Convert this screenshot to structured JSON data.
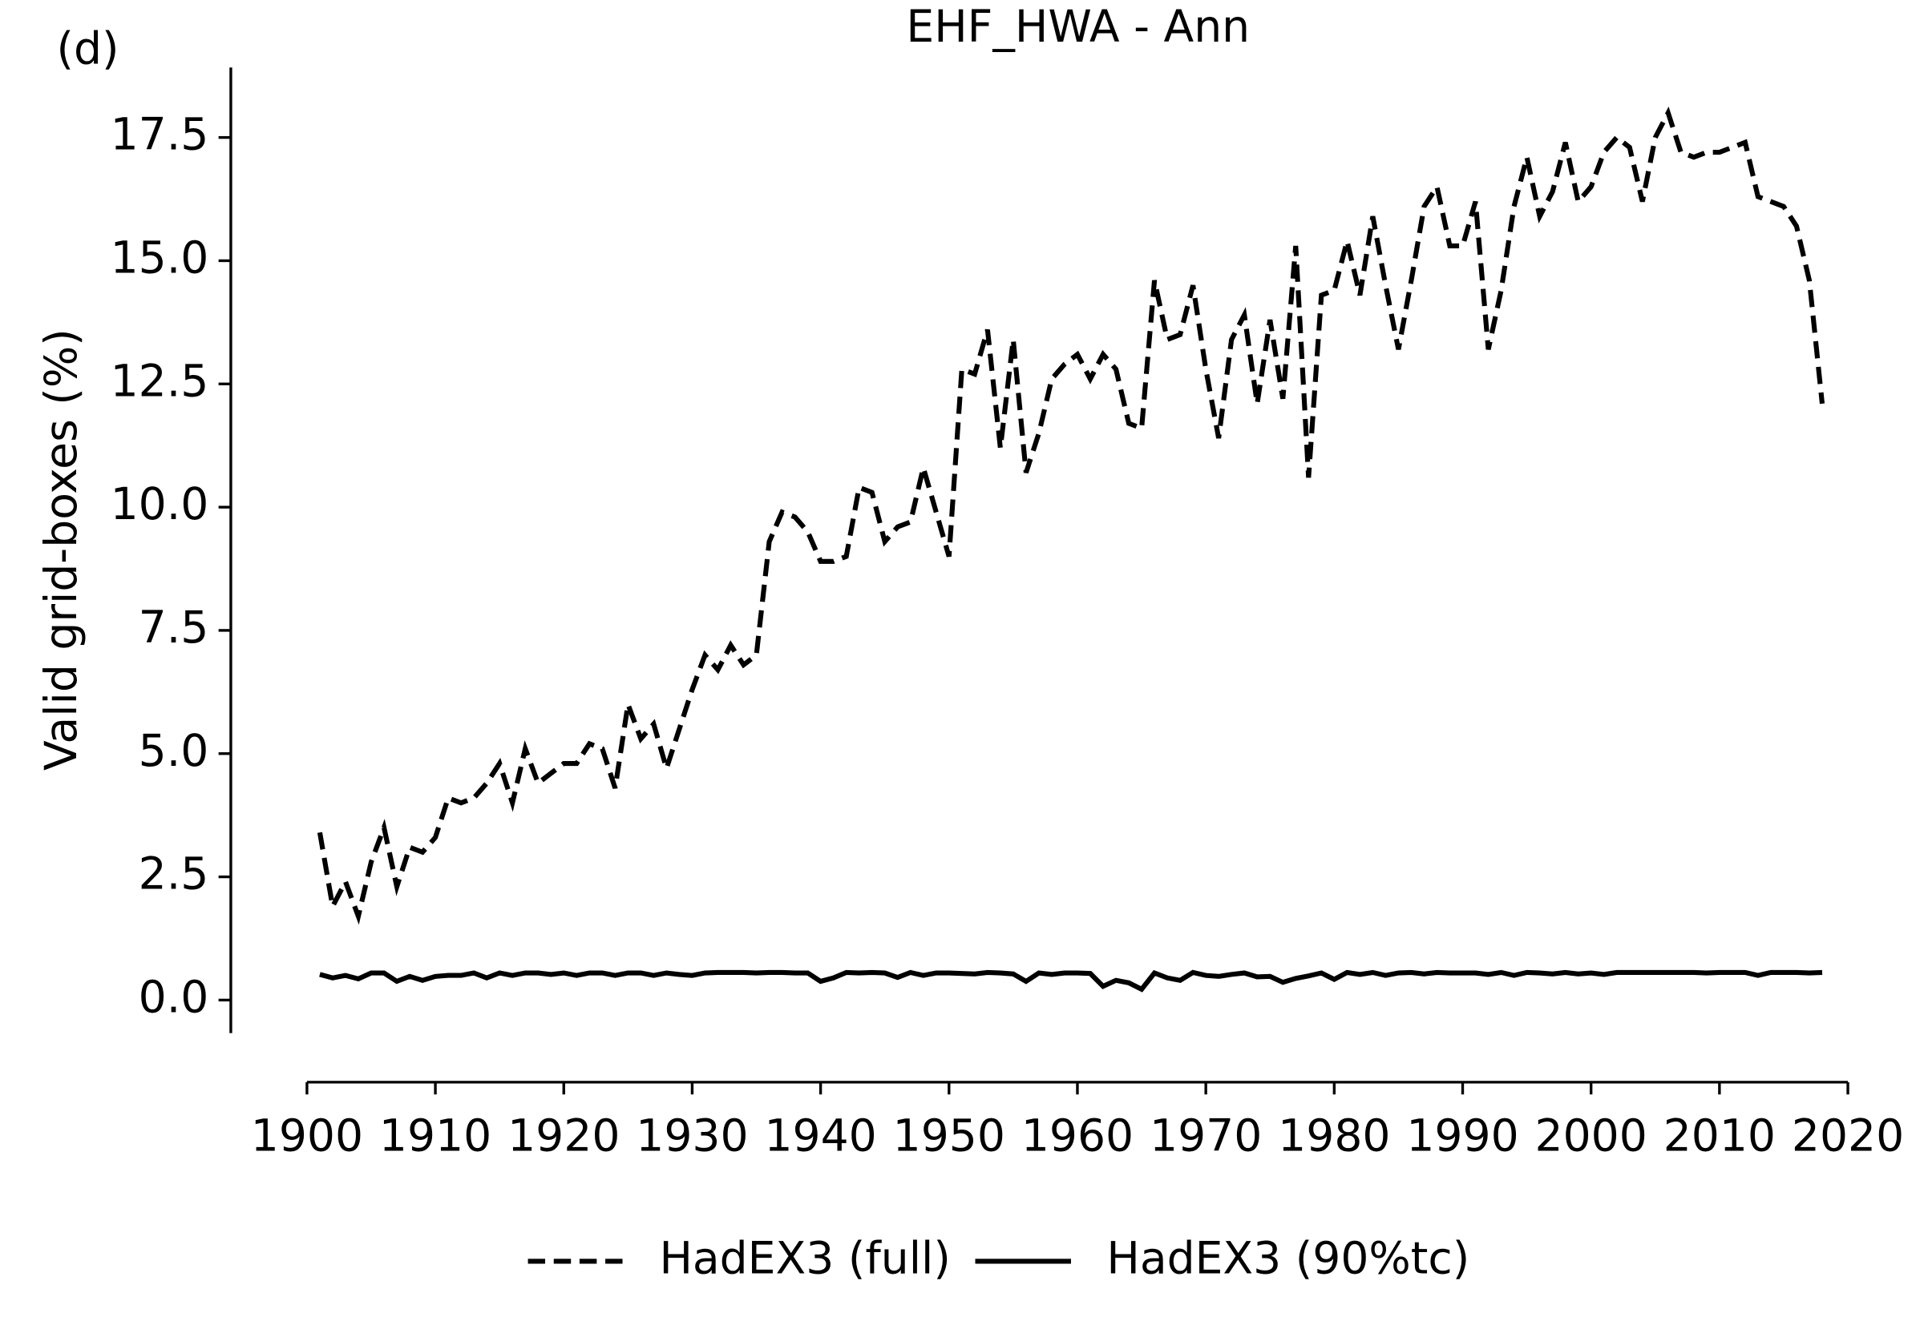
{
  "chart_data": {
    "type": "line",
    "title": "EHF_HWA - Ann",
    "panel_label": "(d)",
    "ylabel": "Valid grid-boxes (%)",
    "x": [
      1901,
      1902,
      1903,
      1904,
      1905,
      1906,
      1907,
      1908,
      1909,
      1910,
      1911,
      1912,
      1913,
      1914,
      1915,
      1916,
      1917,
      1918,
      1919,
      1920,
      1921,
      1922,
      1923,
      1924,
      1925,
      1926,
      1927,
      1928,
      1929,
      1930,
      1931,
      1932,
      1933,
      1934,
      1935,
      1936,
      1937,
      1938,
      1939,
      1940,
      1941,
      1942,
      1943,
      1944,
      1945,
      1946,
      1947,
      1948,
      1949,
      1950,
      1951,
      1952,
      1953,
      1954,
      1955,
      1956,
      1957,
      1958,
      1959,
      1960,
      1961,
      1962,
      1963,
      1964,
      1965,
      1966,
      1967,
      1968,
      1969,
      1970,
      1971,
      1972,
      1973,
      1974,
      1975,
      1976,
      1977,
      1978,
      1979,
      1980,
      1981,
      1982,
      1983,
      1984,
      1985,
      1986,
      1987,
      1988,
      1989,
      1990,
      1991,
      1992,
      1993,
      1994,
      1995,
      1996,
      1997,
      1998,
      1999,
      2000,
      2001,
      2002,
      2003,
      2004,
      2005,
      2006,
      2007,
      2008,
      2009,
      2010,
      2011,
      2012,
      2013,
      2014,
      2015,
      2016,
      2017,
      2018
    ],
    "series": [
      {
        "name": "HadEX3 (full)",
        "color": "#000000",
        "linestyle": "dashed",
        "values": [
          3.4,
          1.9,
          2.4,
          1.7,
          2.8,
          3.5,
          2.3,
          3.1,
          3.0,
          3.3,
          4.1,
          4.0,
          4.1,
          4.4,
          4.8,
          4.0,
          5.1,
          4.4,
          4.6,
          4.8,
          4.8,
          5.2,
          5.1,
          4.3,
          6.0,
          5.3,
          5.6,
          4.7,
          5.5,
          6.3,
          7.0,
          6.7,
          7.2,
          6.8,
          7.0,
          9.3,
          9.9,
          9.8,
          9.5,
          8.9,
          8.9,
          9.0,
          10.4,
          10.3,
          9.3,
          9.6,
          9.7,
          10.8,
          9.9,
          9.0,
          12.8,
          12.7,
          13.6,
          11.2,
          13.4,
          10.7,
          11.5,
          12.6,
          12.9,
          13.1,
          12.6,
          13.1,
          12.8,
          11.7,
          11.6,
          14.6,
          13.4,
          13.5,
          14.5,
          12.8,
          11.4,
          13.4,
          13.9,
          12.1,
          13.8,
          12.2,
          15.3,
          10.6,
          14.3,
          14.4,
          15.4,
          14.3,
          15.9,
          14.5,
          13.2,
          14.6,
          16.1,
          16.5,
          15.3,
          15.3,
          16.2,
          13.2,
          14.4,
          16.1,
          17.1,
          15.9,
          16.4,
          17.4,
          16.2,
          16.5,
          17.2,
          17.5,
          17.3,
          16.2,
          17.5,
          18.0,
          17.2,
          17.1,
          17.2,
          17.2,
          17.3,
          17.4,
          16.3,
          16.2,
          16.1,
          15.7,
          14.6,
          12.1
        ]
      },
      {
        "name": "HadEX3 (90%tc)",
        "color": "#000000",
        "linestyle": "solid",
        "values": [
          0.52,
          0.45,
          0.5,
          0.43,
          0.55,
          0.55,
          0.38,
          0.48,
          0.4,
          0.48,
          0.5,
          0.5,
          0.55,
          0.45,
          0.55,
          0.5,
          0.55,
          0.55,
          0.52,
          0.55,
          0.5,
          0.55,
          0.55,
          0.5,
          0.55,
          0.55,
          0.5,
          0.55,
          0.52,
          0.5,
          0.55,
          0.56,
          0.56,
          0.56,
          0.55,
          0.56,
          0.56,
          0.55,
          0.55,
          0.38,
          0.45,
          0.56,
          0.55,
          0.56,
          0.55,
          0.46,
          0.56,
          0.5,
          0.55,
          0.55,
          0.54,
          0.53,
          0.56,
          0.55,
          0.53,
          0.38,
          0.55,
          0.52,
          0.55,
          0.55,
          0.54,
          0.28,
          0.4,
          0.35,
          0.22,
          0.55,
          0.45,
          0.4,
          0.56,
          0.5,
          0.48,
          0.52,
          0.55,
          0.47,
          0.48,
          0.36,
          0.44,
          0.49,
          0.55,
          0.42,
          0.56,
          0.52,
          0.56,
          0.5,
          0.55,
          0.56,
          0.53,
          0.56,
          0.55,
          0.55,
          0.55,
          0.52,
          0.56,
          0.5,
          0.56,
          0.55,
          0.53,
          0.56,
          0.53,
          0.55,
          0.52,
          0.56,
          0.56,
          0.56,
          0.56,
          0.56,
          0.56,
          0.56,
          0.55,
          0.56,
          0.56,
          0.56,
          0.5,
          0.56,
          0.56,
          0.56,
          0.55,
          0.56
        ]
      }
    ],
    "xlim": [
      1900,
      2020
    ],
    "xticks": [
      1900,
      1910,
      1920,
      1930,
      1940,
      1950,
      1960,
      1970,
      1980,
      1990,
      2000,
      2010,
      2020
    ],
    "ylim": [
      -0.67,
      18.92
    ],
    "yticks": [
      {
        "value": 0,
        "label": "0.0"
      },
      {
        "value": 2.5,
        "label": "2.5"
      },
      {
        "value": 5,
        "label": "5.0"
      },
      {
        "value": 7.5,
        "label": "7.5"
      },
      {
        "value": 10,
        "label": "10.0"
      },
      {
        "value": 12.5,
        "label": "12.5"
      },
      {
        "value": 15,
        "label": "15.0"
      },
      {
        "value": 17.5,
        "label": "17.5"
      }
    ],
    "grid": false,
    "legend": "bottom"
  }
}
